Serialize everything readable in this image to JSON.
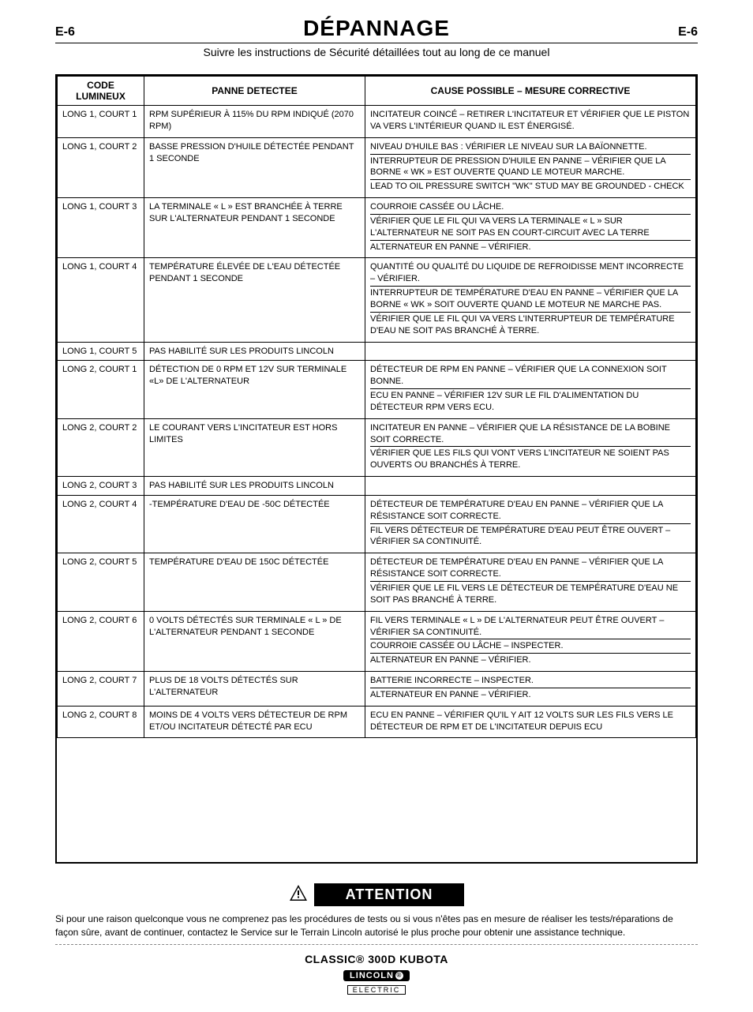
{
  "header": {
    "page_left": "E-6",
    "title": "DÉPANNAGE",
    "page_right": "E-6",
    "subtitle": "Suivre les instructions de Sécurité détaillées tout au long de ce manuel"
  },
  "table": {
    "columns": [
      "CODE LUMINEUX",
      "PANNE DETECTEE",
      "CAUSE POSSIBLE – MESURE CORRECTIVE"
    ],
    "rows": [
      {
        "code": "LONG 1, COURT 1",
        "panne": "RPM SUPÉRIEUR À 115% DU RPM INDIQUÉ (2070 RPM)",
        "causes": [
          "INCITATEUR COINCÉ – RETIRER L'INCITATEUR ET VÉRIFIER QUE LE PISTON VA VERS L'INTÉRIEUR QUAND IL EST ÉNERGISÉ."
        ]
      },
      {
        "code": "LONG 1, COURT 2",
        "panne": "BASSE PRESSION D'HUILE DÉTECTÉE PENDANT 1 SECONDE",
        "causes": [
          "NIVEAU D'HUILE BAS : VÉRIFIER LE NIVEAU SUR LA BAÏONNETTE.",
          "INTERRUPTEUR DE PRESSION D'HUILE EN PANNE – VÉRIFIER QUE LA BORNE « WK » EST OUVERTE QUAND LE MOTEUR MARCHE.",
          "LEAD TO OIL PRESSURE SWITCH \"WK\" STUD MAY BE GROUNDED - CHECK"
        ]
      },
      {
        "code": "LONG 1, COURT 3",
        "panne": "LA TERMINALE « L » EST BRANCHÉE À TERRE SUR L'ALTERNATEUR PENDANT 1 SECONDE",
        "causes": [
          "COURROIE CASSÉE OU LÂCHE.",
          "VÉRIFIER QUE LE FIL QUI VA VERS LA TERMINALE « L » SUR L'ALTERNATEUR NE SOIT PAS EN COURT-CIRCUIT AVEC LA TERRE",
          "ALTERNATEUR EN PANNE – VÉRIFIER."
        ]
      },
      {
        "code": "LONG 1, COURT 4",
        "panne": "TEMPÉRATURE ÉLEVÉE DE L'EAU DÉTECTÉE PENDANT 1 SECONDE",
        "causes": [
          "QUANTITÉ OU QUALITÉ DU LIQUIDE DE REFROIDISSE MENT INCORRECTE – VÉRIFIER.",
          "INTERRUPTEUR DE TEMPÉRATURE D'EAU EN PANNE – VÉRIFIER QUE LA BORNE « WK » SOIT OUVERTE QUAND LE MOTEUR NE MARCHE PAS.",
          "VÉRIFIER QUE LE FIL QUI VA VERS L'INTERRUPTEUR DE TEMPÉRATURE D'EAU NE SOIT PAS BRANCHÉ À TERRE."
        ]
      },
      {
        "code": "LONG 1, COURT 5",
        "panne": "PAS HABILITÉ SUR LES PRODUITS LINCOLN",
        "causes": []
      },
      {
        "code": "LONG 2, COURT 1",
        "panne": "DÉTECTION DE 0 RPM ET 12V SUR TERMINALE «L» DE L'ALTERNATEUR",
        "causes": [
          "DÉTECTEUR DE RPM EN PANNE – VÉRIFIER QUE LA CONNEXION SOIT BONNE.",
          "ECU EN PANNE – VÉRIFIER 12V SUR LE FIL D'ALIMENTATION DU DÉTECTEUR RPM VERS ECU."
        ]
      },
      {
        "code": "LONG 2, COURT 2",
        "panne": "LE COURANT VERS L'INCITATEUR EST HORS LIMITES",
        "causes": [
          "INCITATEUR EN PANNE – VÉRIFIER QUE LA RÉSISTANCE DE LA BOBINE SOIT CORRECTE.",
          "VÉRIFIER QUE LES FILS QUI VONT VERS L'INCITATEUR NE SOIENT PAS OUVERTS OU BRANCHÉS À TERRE."
        ]
      },
      {
        "code": "LONG 2, COURT 3",
        "panne": "PAS HABILITÉ SUR LES PRODUITS LINCOLN",
        "causes": []
      },
      {
        "code": "LONG 2, COURT 4",
        "panne": "-TEMPÉRATURE D'EAU DE -50C DÉTECTÉE",
        "causes": [
          "DÉTECTEUR DE TEMPÉRATURE D'EAU EN PANNE – VÉRIFIER QUE LA RÉSISTANCE SOIT CORRECTE.",
          "FIL VERS DÉTECTEUR DE TEMPÉRATURE D'EAU PEUT ÊTRE OUVERT – VÉRIFIER SA CONTINUITÉ."
        ]
      },
      {
        "code": "LONG 2, COURT 5",
        "panne": "TEMPÉRATURE D'EAU DE 150C DÉTECTÉE",
        "causes": [
          "DÉTECTEUR DE TEMPÉRATURE D'EAU EN PANNE – VÉRIFIER QUE LA RÉSISTANCE SOIT CORRECTE.",
          "VÉRIFIER QUE LE FIL VERS LE DÉTECTEUR DE TEMPÉRATURE D'EAU NE SOIT PAS BRANCHÉ À TERRE."
        ]
      },
      {
        "code": "LONG 2, COURT 6",
        "panne": "0 VOLTS DÉTECTÉS SUR TERMINALE « L » DE L'ALTERNATEUR PENDANT 1 SECONDE",
        "causes": [
          "FIL VERS TERMINALE « L » DE L'ALTERNATEUR PEUT ÊTRE OUVERT – VÉRIFIER SA CONTINUITÉ.",
          "COURROIE CASSÉE OU LÂCHE – INSPECTER.",
          "ALTERNATEUR EN PANNE – VÉRIFIER."
        ]
      },
      {
        "code": "LONG 2, COURT 7",
        "panne": "PLUS DE 18 VOLTS DÉTECTÉS SUR L'ALTERNATEUR",
        "causes": [
          "BATTERIE INCORRECTE – INSPECTER.",
          "ALTERNATEUR EN PANNE – VÉRIFIER."
        ]
      },
      {
        "code": "LONG 2, COURT 8",
        "panne": "MOINS DE 4 VOLTS VERS DÉTECTEUR DE RPM ET/OU INCITATEUR DÉTECTÉ PAR ECU",
        "causes": [
          "ECU EN PANNE – VÉRIFIER QU'IL Y AIT 12 VOLTS SUR LES FILS VERS LE DÉTECTEUR DE RPM ET DE L'INCITATEUR DEPUIS ECU"
        ]
      }
    ]
  },
  "attention": {
    "label": "ATTENTION",
    "text": "Si pour une raison quelconque vous ne comprenez pas les procédures de tests ou si vous n'êtes pas en mesure de réaliser les tests/réparations de façon sûre, avant de continuer, contactez le Service sur le Terrain Lincoln autorisé le plus proche pour obtenir une assistance technique."
  },
  "footer": {
    "product": "CLASSIC® 300D KUBOTA",
    "brand_top": "LINCOLN",
    "brand_bottom": "ELECTRIC"
  }
}
